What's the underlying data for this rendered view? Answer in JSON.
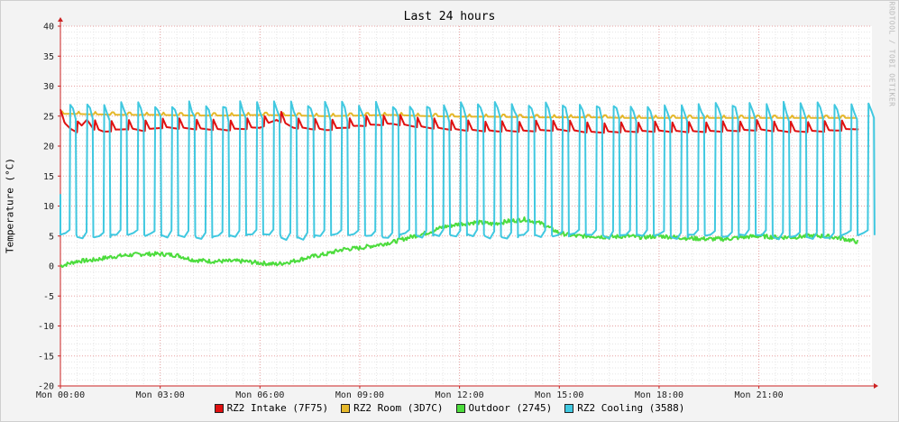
{
  "chart_data": {
    "type": "line",
    "title": "Last 24 hours",
    "ylabel": "Temperature (°C)",
    "watermark": "RRDTOOL / TOBI OETIKER",
    "ylim": [
      -20,
      40
    ],
    "yticks": [
      40,
      35,
      30,
      25,
      20,
      15,
      10,
      5,
      0,
      -5,
      -10,
      -15,
      -20
    ],
    "xlim_hours": [
      0,
      24.4
    ],
    "xticks": [
      {
        "h": 0,
        "label": "Mon 00:00"
      },
      {
        "h": 3,
        "label": "Mon 03:00"
      },
      {
        "h": 6,
        "label": "Mon 06:00"
      },
      {
        "h": 9,
        "label": "Mon 09:00"
      },
      {
        "h": 12,
        "label": "Mon 12:00"
      },
      {
        "h": 15,
        "label": "Mon 15:00"
      },
      {
        "h": 18,
        "label": "Mon 18:00"
      },
      {
        "h": 21,
        "label": "Mon 21:00"
      }
    ],
    "grid": true,
    "legend_position": "bottom",
    "series": [
      {
        "name": "RZ2 Intake (7F75)",
        "color": "#e01010",
        "x": [
          0,
          0.3,
          0.5,
          0.8,
          1.0,
          1.3,
          2.0,
          2.5,
          3.0,
          4.0,
          5.0,
          6.0,
          6.5,
          7.0,
          8.0,
          9.0,
          10.0,
          11.0,
          12.0,
          13.0,
          14.0,
          15.0,
          16.0,
          17.0,
          18.0,
          19.0,
          20.0,
          21.0,
          22.0,
          23.0,
          24.0
        ],
        "values": [
          24.5,
          23.0,
          22.5,
          24.5,
          23.0,
          22.5,
          23.0,
          22.7,
          23.2,
          23.0,
          22.8,
          23.2,
          24.5,
          23.2,
          22.8,
          23.5,
          23.8,
          23.2,
          22.8,
          22.6,
          22.6,
          22.8,
          22.4,
          22.5,
          22.6,
          22.5,
          22.6,
          22.8,
          22.5,
          22.6,
          23.0
        ]
      },
      {
        "name": "RZ2 Room (3D7C)",
        "color": "#e5b82a",
        "x": [
          0,
          1,
          2,
          3,
          4,
          5,
          6,
          7,
          8,
          9,
          10,
          11,
          12,
          13,
          14,
          15,
          16,
          17,
          18,
          19,
          20,
          21,
          22,
          23,
          24
        ],
        "values": [
          25.5,
          25.4,
          25.3,
          25.3,
          25.2,
          25.2,
          25.3,
          25.2,
          25.1,
          25.2,
          25.3,
          25.1,
          25.0,
          25.0,
          24.9,
          24.9,
          24.9,
          24.8,
          24.8,
          24.8,
          24.8,
          24.8,
          24.8,
          24.8,
          24.8
        ]
      },
      {
        "name": "Outdoor (2745)",
        "color": "#4cdc3c",
        "x": [
          0,
          0.5,
          1,
          1.5,
          2,
          2.5,
          3,
          3.5,
          4,
          4.5,
          5,
          5.5,
          6,
          6.5,
          7,
          7.5,
          8,
          8.5,
          9,
          9.5,
          10,
          10.5,
          11,
          11.5,
          12,
          12.5,
          13,
          13.5,
          14,
          14.5,
          15,
          15.5,
          16,
          16.5,
          17,
          17.5,
          18,
          18.5,
          19,
          19.5,
          20,
          20.5,
          21,
          21.5,
          22,
          22.5,
          23,
          23.5,
          24
        ],
        "values": [
          0,
          0.8,
          1.0,
          1.5,
          1.8,
          2.0,
          2.0,
          1.8,
          1.0,
          0.8,
          0.8,
          0.8,
          0.5,
          0.3,
          0.8,
          1.5,
          2.0,
          2.8,
          3.0,
          3.5,
          4.0,
          4.8,
          5.5,
          6.5,
          7.0,
          7.3,
          7.0,
          7.5,
          7.8,
          7.0,
          5.5,
          5.0,
          5.0,
          4.8,
          5.0,
          4.8,
          5.0,
          4.8,
          4.6,
          4.5,
          4.5,
          4.8,
          5.0,
          4.8,
          4.8,
          5.0,
          5.0,
          4.6,
          4.0
        ]
      },
      {
        "name": "RZ2 Cooling (3588)",
        "color": "#40c8e0",
        "cycles_per_day": 47,
        "high": 27.0,
        "low": 5.0
      }
    ]
  }
}
